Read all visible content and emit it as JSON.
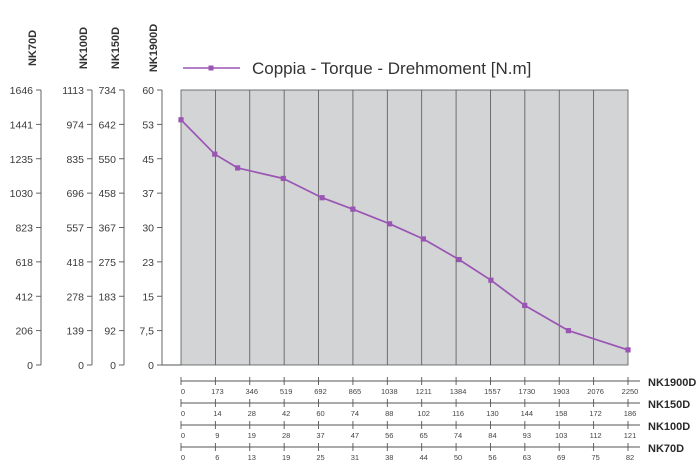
{
  "chart_data": {
    "type": "line",
    "legend": {
      "label": "Coppia - Torque - Drehmoment [N.m]",
      "placement": "top"
    },
    "colors": {
      "series": "#9a55b4",
      "plot_background": "#d3d4d6",
      "grid": "#555555",
      "axis": "#555555"
    },
    "grid": true,
    "y_axes": [
      {
        "name": "NK70D",
        "ticks": [
          "0",
          "206",
          "412",
          "618",
          "823",
          "1030",
          "1235",
          "1441",
          "1646"
        ]
      },
      {
        "name": "NK100D",
        "ticks": [
          "0",
          "139",
          "278",
          "418",
          "557",
          "696",
          "835",
          "974",
          "1113"
        ]
      },
      {
        "name": "NK150D",
        "ticks": [
          "0",
          "92",
          "183",
          "275",
          "367",
          "458",
          "550",
          "642",
          "734"
        ]
      },
      {
        "name": "NK1900D",
        "ticks": [
          "0",
          "7,5",
          "15",
          "23",
          "30",
          "37",
          "45",
          "53",
          "60"
        ]
      }
    ],
    "primary_y": {
      "axis": "NK1900D",
      "ylim": [
        0,
        60
      ]
    },
    "x_axes": [
      {
        "name": "NK1900D",
        "ticks": [
          "0",
          "173",
          "346",
          "519",
          "692",
          "865",
          "1038",
          "1211",
          "1384",
          "1557",
          "1730",
          "1903",
          "2076",
          "2250"
        ]
      },
      {
        "name": "NK150D",
        "ticks": [
          "0",
          "14",
          "28",
          "42",
          "60",
          "74",
          "88",
          "102",
          "116",
          "130",
          "144",
          "158",
          "172",
          "186"
        ]
      },
      {
        "name": "NK100D",
        "ticks": [
          "0",
          "9",
          "19",
          "28",
          "37",
          "47",
          "56",
          "65",
          "74",
          "84",
          "93",
          "103",
          "112",
          "121"
        ]
      },
      {
        "name": "NK70D",
        "ticks": [
          "0",
          "6",
          "13",
          "19",
          "25",
          "31",
          "38",
          "44",
          "50",
          "56",
          "63",
          "69",
          "75",
          "82"
        ]
      }
    ],
    "primary_x": {
      "axis": "NK1900D",
      "xlim": [
        0,
        2250
      ]
    },
    "series": [
      {
        "name": "Coppia - Torque - Drehmoment [N.m]",
        "x": [
          0,
          170,
          285,
          515,
          710,
          865,
          1050,
          1220,
          1400,
          1560,
          1730,
          1950,
          2250
        ],
        "y": [
          53.5,
          46.0,
          43.0,
          40.7,
          36.5,
          34.0,
          30.8,
          27.5,
          23.0,
          18.5,
          13.0,
          7.5,
          3.3
        ]
      }
    ]
  }
}
